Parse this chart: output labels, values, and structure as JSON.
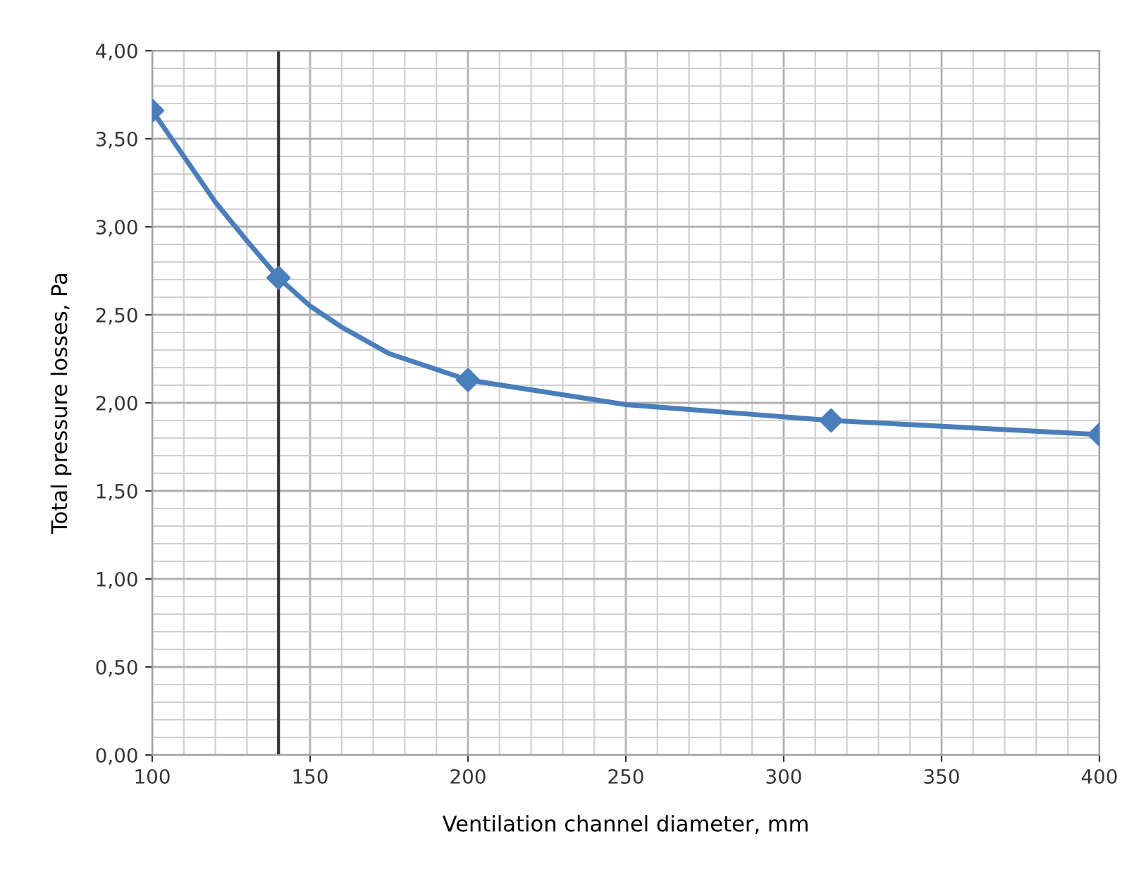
{
  "chart_data": {
    "type": "line",
    "xlabel": "Ventilation channel diameter, mm",
    "ylabel": "Total pressure losses, Pa",
    "x": [
      100,
      140,
      200,
      315,
      400
    ],
    "series": [
      {
        "marker": "none",
        "color": "#4a7ebb",
        "x": [
          100,
          110,
          120,
          130,
          140,
          150,
          160,
          175,
          200,
          250,
          315,
          400
        ],
        "values": [
          3.66,
          3.4,
          3.14,
          2.92,
          2.71,
          2.55,
          2.43,
          2.28,
          2.13,
          1.99,
          1.9,
          1.82
        ]
      },
      {
        "type": "scatter",
        "color": "#4a7ebb",
        "values": [
          3.66,
          2.71,
          2.13,
          1.9,
          1.82
        ]
      }
    ],
    "xlim": [
      100,
      400
    ],
    "xticks": [
      100,
      150,
      200,
      250,
      300,
      350,
      400
    ],
    "ylim": [
      0,
      4
    ],
    "yticks": [
      {
        "value": 0,
        "label": "0,00"
      },
      {
        "value": 0.5,
        "label": "0,50"
      },
      {
        "value": 1,
        "label": "1,00"
      },
      {
        "value": 1.5,
        "label": "1,50"
      },
      {
        "value": 2,
        "label": "2,00"
      },
      {
        "value": 2.5,
        "label": "2,50"
      },
      {
        "value": 3,
        "label": "3,00"
      },
      {
        "value": 3.5,
        "label": "3,50"
      },
      {
        "value": 4,
        "label": "4,00"
      }
    ],
    "ref_lines": [
      {
        "axis": "x",
        "value": 140,
        "color": "#333333"
      }
    ],
    "grid": true,
    "legend": false,
    "marker": "diamond",
    "line_style": "solid"
  }
}
